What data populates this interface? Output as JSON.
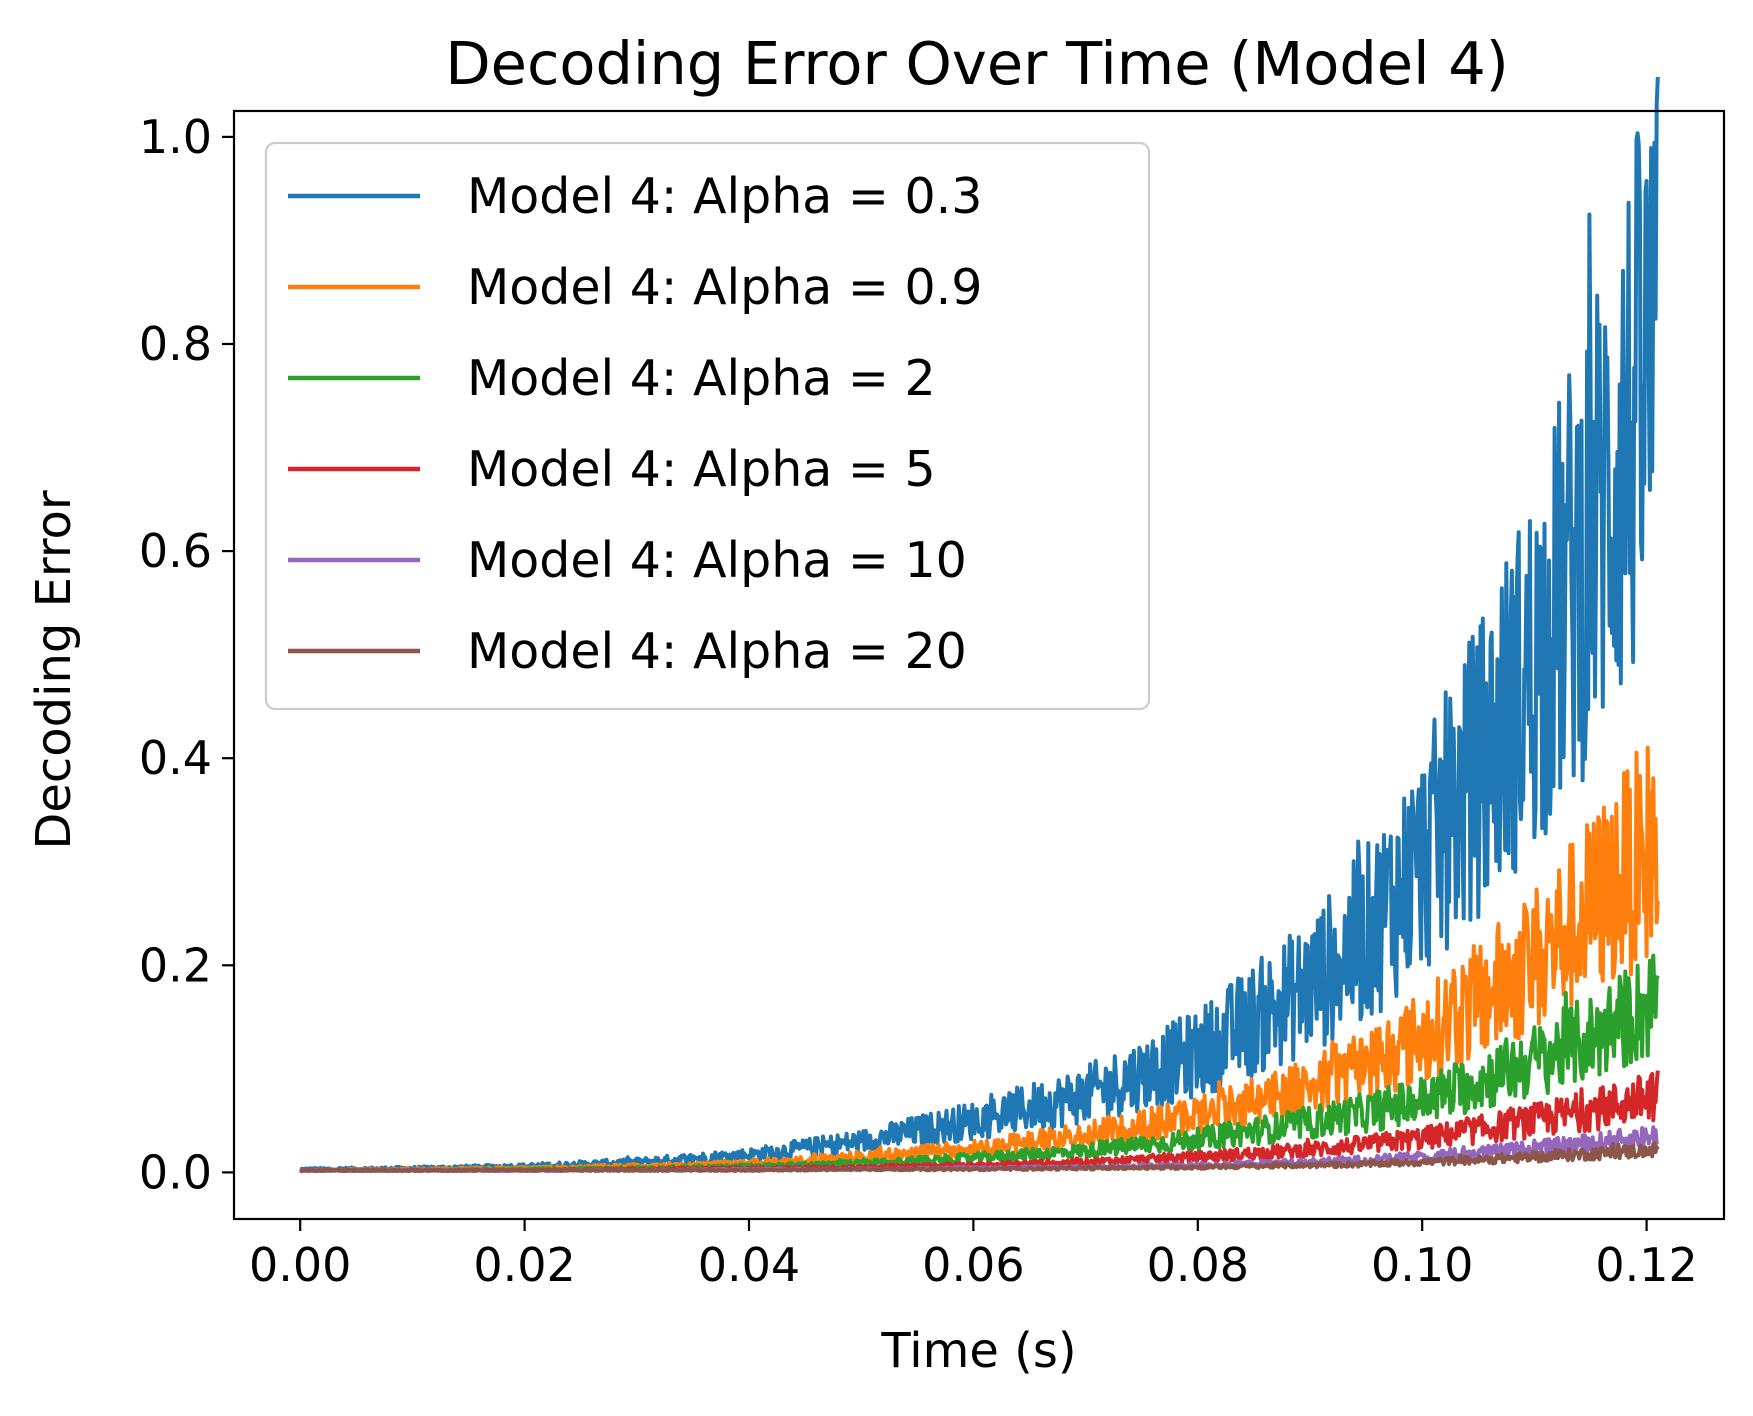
{
  "chart_data": {
    "type": "line",
    "title": "Decoding Error Over Time (Model 4)",
    "xlabel": "Time (s)",
    "ylabel": "Decoding Error",
    "xlim": [
      -0.0059,
      0.1269
    ],
    "ylim": [
      -0.045,
      1.025
    ],
    "xticks": [
      "0.00",
      "0.02",
      "0.04",
      "0.06",
      "0.08",
      "0.10",
      "0.12"
    ],
    "xtick_values": [
      0.0,
      0.02,
      0.04,
      0.06,
      0.08,
      0.1,
      0.12
    ],
    "yticks": [
      "0.0",
      "0.2",
      "0.4",
      "0.6",
      "0.8",
      "1.0"
    ],
    "ytick_values": [
      0.0,
      0.2,
      0.4,
      0.6,
      0.8,
      1.0
    ],
    "grid": false,
    "legend_position": "upper left",
    "series": [
      {
        "name": "Model 4: Alpha = 0.3",
        "color": "#1f77b4",
        "x": [
          0.0,
          0.01,
          0.02,
          0.03,
          0.04,
          0.05,
          0.06,
          0.07,
          0.08,
          0.09,
          0.095,
          0.1,
          0.105,
          0.11,
          0.115,
          0.12,
          0.121
        ],
        "y": [
          0.003,
          0.004,
          0.006,
          0.01,
          0.017,
          0.03,
          0.05,
          0.075,
          0.115,
          0.18,
          0.23,
          0.3,
          0.39,
          0.49,
          0.62,
          0.76,
          0.78
        ],
        "noise": 0.17
      },
      {
        "name": "Model 4: Alpha = 0.9",
        "color": "#ff7f0e",
        "x": [
          0.0,
          0.01,
          0.02,
          0.03,
          0.04,
          0.05,
          0.06,
          0.07,
          0.08,
          0.09,
          0.095,
          0.1,
          0.105,
          0.11,
          0.115,
          0.12,
          0.121
        ],
        "y": [
          0.002,
          0.003,
          0.004,
          0.006,
          0.009,
          0.015,
          0.023,
          0.036,
          0.055,
          0.085,
          0.105,
          0.13,
          0.165,
          0.205,
          0.255,
          0.31,
          0.32
        ],
        "noise": 0.16
      },
      {
        "name": "Model 4: Alpha = 2",
        "color": "#2ca02c",
        "x": [
          0.0,
          0.01,
          0.02,
          0.03,
          0.04,
          0.05,
          0.06,
          0.07,
          0.08,
          0.09,
          0.095,
          0.1,
          0.105,
          0.11,
          0.115,
          0.12,
          0.121
        ],
        "y": [
          0.002,
          0.002,
          0.003,
          0.004,
          0.006,
          0.009,
          0.014,
          0.021,
          0.032,
          0.048,
          0.058,
          0.07,
          0.088,
          0.108,
          0.13,
          0.16,
          0.165
        ],
        "noise": 0.15
      },
      {
        "name": "Model 4: Alpha = 5",
        "color": "#d62728",
        "x": [
          0.0,
          0.01,
          0.02,
          0.03,
          0.04,
          0.05,
          0.06,
          0.07,
          0.08,
          0.09,
          0.095,
          0.1,
          0.105,
          0.11,
          0.115,
          0.12,
          0.121
        ],
        "y": [
          0.002,
          0.002,
          0.002,
          0.003,
          0.004,
          0.005,
          0.007,
          0.01,
          0.015,
          0.022,
          0.027,
          0.033,
          0.041,
          0.05,
          0.06,
          0.072,
          0.075
        ],
        "noise": 0.15
      },
      {
        "name": "Model 4: Alpha = 10",
        "color": "#9467bd",
        "x": [
          0.0,
          0.01,
          0.02,
          0.03,
          0.04,
          0.05,
          0.06,
          0.07,
          0.08,
          0.09,
          0.095,
          0.1,
          0.105,
          0.11,
          0.115,
          0.12,
          0.121
        ],
        "y": [
          0.002,
          0.002,
          0.002,
          0.002,
          0.003,
          0.003,
          0.004,
          0.005,
          0.007,
          0.01,
          0.012,
          0.015,
          0.019,
          0.023,
          0.028,
          0.034,
          0.035
        ],
        "noise": 0.15
      },
      {
        "name": "Model 4: Alpha = 20",
        "color": "#8c564b",
        "x": [
          0.0,
          0.01,
          0.02,
          0.03,
          0.04,
          0.05,
          0.06,
          0.07,
          0.08,
          0.09,
          0.095,
          0.1,
          0.105,
          0.11,
          0.115,
          0.12,
          0.121
        ],
        "y": [
          0.002,
          0.002,
          0.002,
          0.002,
          0.002,
          0.003,
          0.003,
          0.004,
          0.005,
          0.007,
          0.008,
          0.01,
          0.012,
          0.015,
          0.018,
          0.021,
          0.022
        ],
        "noise": 0.15
      }
    ]
  }
}
